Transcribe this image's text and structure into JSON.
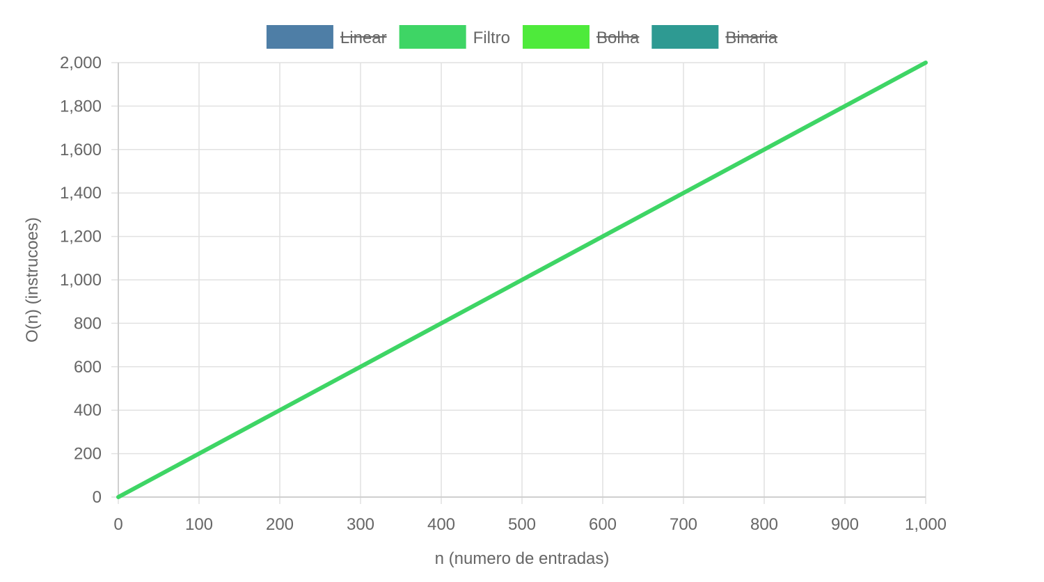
{
  "chart_data": {
    "type": "line",
    "x": [
      0,
      1000
    ],
    "series": [
      {
        "name": "Linear",
        "hidden": true,
        "color": "#4e7ea6"
      },
      {
        "name": "Filtro",
        "hidden": false,
        "color": "#3ed565",
        "points": [
          [
            0,
            0
          ],
          [
            1000,
            2000
          ]
        ]
      },
      {
        "name": "Bolha",
        "hidden": true,
        "color": "#4eea3b"
      },
      {
        "name": "Binaria",
        "hidden": true,
        "color": "#2e9a92"
      }
    ],
    "xlabel": "n (numero de entradas)",
    "ylabel": "O(n) (instrucoes)",
    "xlim": [
      0,
      1000
    ],
    "ylim": [
      0,
      2000
    ],
    "x_ticks": [
      "0",
      "100",
      "200",
      "300",
      "400",
      "500",
      "600",
      "700",
      "800",
      "900",
      "1,000"
    ],
    "y_ticks": [
      "0",
      "200",
      "400",
      "600",
      "800",
      "1,000",
      "1,200",
      "1,400",
      "1,600",
      "1,800",
      "2,000"
    ],
    "grid": true,
    "legend_position": "top"
  }
}
